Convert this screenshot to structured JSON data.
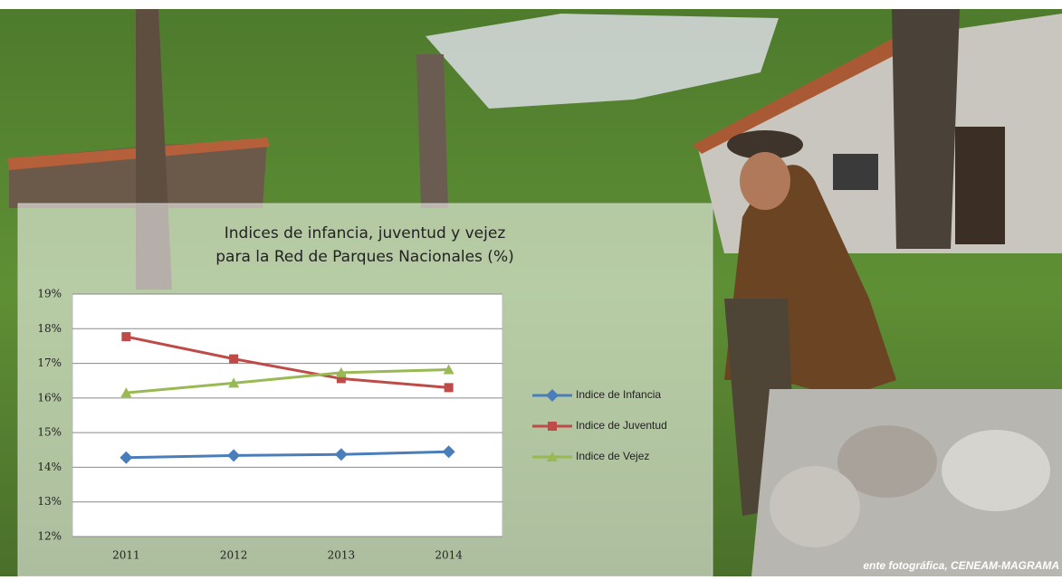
{
  "chart_data": {
    "type": "line",
    "title": [
      "Indices de infancia, juventud y vejez",
      "para la Red de Parques Nacionales (%)"
    ],
    "categories": [
      "2011",
      "2012",
      "2013",
      "2014"
    ],
    "series": [
      {
        "name": "Indice de Infancia",
        "color": "#4a7ebb",
        "marker": "diamond",
        "values": [
          14.28,
          14.34,
          14.37,
          14.45
        ]
      },
      {
        "name": "Indice de Juventud",
        "color": "#be4b48",
        "marker": "square",
        "values": [
          17.77,
          17.13,
          16.56,
          16.3
        ]
      },
      {
        "name": "Indice de Vejez",
        "color": "#98b954",
        "marker": "triangle",
        "values": [
          16.15,
          16.43,
          16.73,
          16.82
        ]
      }
    ],
    "ylim": [
      12,
      19
    ],
    "yticks": [
      {
        "value": 12,
        "label": "12%"
      },
      {
        "value": 13,
        "label": "13%"
      },
      {
        "value": 14,
        "label": "14%"
      },
      {
        "value": 15,
        "label": "15%"
      },
      {
        "value": 16,
        "label": "16%"
      },
      {
        "value": 17,
        "label": "17%"
      },
      {
        "value": 18,
        "label": "18%"
      },
      {
        "value": 19,
        "label": "19%"
      }
    ],
    "grid": true,
    "legend": "right"
  },
  "photo_credit": "ente fotográfica, CENEAM-MAGRAMA"
}
